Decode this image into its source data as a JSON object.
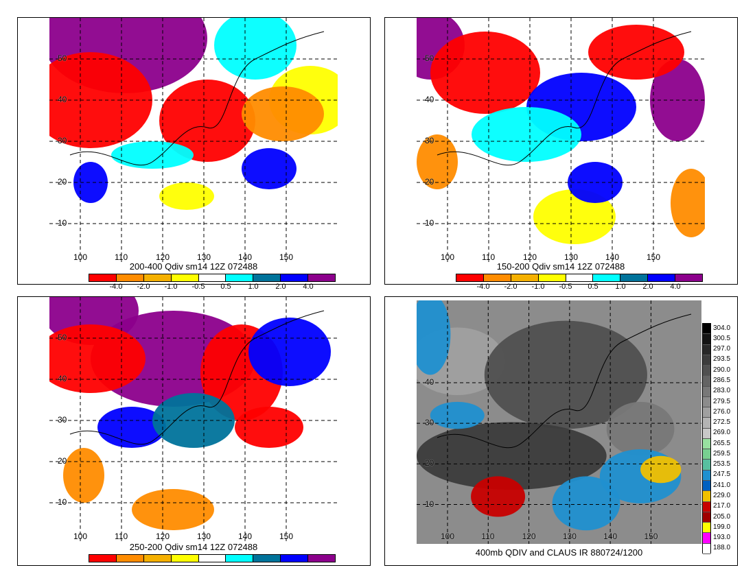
{
  "panels": [
    {
      "caption": "200-400 Qdiv sm14 12Z 072488",
      "lat_labels": [
        "50",
        "40",
        "30",
        "20",
        "10"
      ],
      "lon_labels": [
        "100",
        "110",
        "120",
        "130",
        "140",
        "150"
      ],
      "colorbar": {
        "colors": [
          "#ff0000",
          "#ff8c00",
          "#f5b000",
          "#ffff00",
          "#ffffff",
          "#00ffff",
          "#00739b",
          "#0000ff",
          "#8c008c"
        ],
        "ticks": [
          "-4.0",
          "-2.0",
          "-1.0",
          "-0.5",
          "0.5",
          "1.0",
          "2.0",
          "4.0"
        ]
      }
    },
    {
      "caption": "150-200 Qdiv sm14 12Z 072488",
      "lat_labels": [
        "50",
        "40",
        "30",
        "20",
        "10"
      ],
      "lon_labels": [
        "100",
        "110",
        "120",
        "130",
        "140",
        "150"
      ],
      "colorbar": {
        "colors": [
          "#ff0000",
          "#ff8c00",
          "#f5b000",
          "#ffff00",
          "#ffffff",
          "#00ffff",
          "#00739b",
          "#0000ff",
          "#8c008c"
        ],
        "ticks": [
          "-4.0",
          "-2.0",
          "-1.0",
          "-0.5",
          "0.5",
          "1.0",
          "2.0",
          "4.0"
        ]
      }
    },
    {
      "caption": "250-200 Qdiv sm14 12Z 072488",
      "lat_labels": [
        "50",
        "40",
        "30",
        "20",
        "10"
      ],
      "lon_labels": [
        "100",
        "110",
        "120",
        "130",
        "140",
        "150"
      ],
      "colorbar": {
        "colors": [
          "#ff0000",
          "#ff8c00",
          "#f5b000",
          "#ffff00",
          "#ffffff",
          "#00ffff",
          "#00739b",
          "#0000ff",
          "#8c008c"
        ],
        "ticks": []
      }
    },
    {
      "caption": "400mb QDIV and CLAUS IR 880724/1200",
      "lat_labels": [
        "40",
        "30",
        "20",
        "10"
      ],
      "lon_labels": [
        "100",
        "110",
        "120",
        "130",
        "140",
        "150"
      ],
      "ir_scale": {
        "labels": [
          "304.0",
          "300.5",
          "297.0",
          "293.5",
          "290.0",
          "286.5",
          "283.0",
          "279.5",
          "276.0",
          "272.5",
          "269.0",
          "265.5",
          "259.5",
          "253.5",
          "247.5",
          "241.0",
          "229.0",
          "217.0",
          "205.0",
          "199.0",
          "193.0",
          "188.0"
        ],
        "colors": [
          "#000000",
          "#141414",
          "#282828",
          "#3c3c3c",
          "#505050",
          "#646464",
          "#787878",
          "#8c8c8c",
          "#a0a0a0",
          "#b4b4b4",
          "#c8c8c8",
          "#98e0a0",
          "#78d090",
          "#58c0a0",
          "#2090d0",
          "#0060c0",
          "#f0c000",
          "#c80000",
          "#a00000",
          "#ffff00",
          "#ff00ff",
          "#ffffff"
        ]
      }
    }
  ]
}
